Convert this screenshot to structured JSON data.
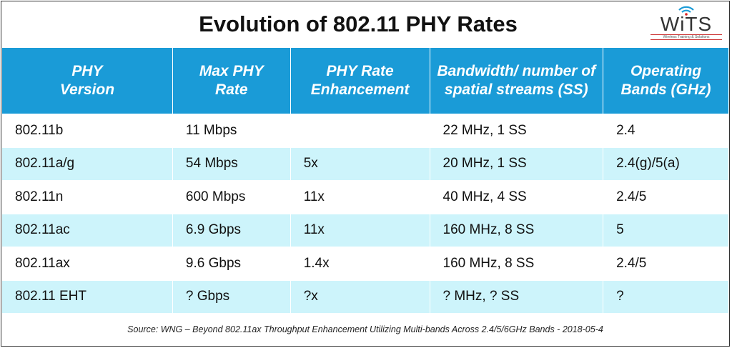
{
  "title": "Evolution of 802.11 PHY Rates",
  "logo": {
    "text": "WiTS",
    "tagline": "Wireless Training & Solutions"
  },
  "headers": [
    "PHY Version",
    "Max PHY Rate",
    "PHY Rate Enhancement",
    "Bandwidth/ number of spatial streams (SS)",
    "Operating Bands (GHz)"
  ],
  "rows": [
    [
      "802.11b",
      "11 Mbps",
      "",
      "22 MHz, 1 SS",
      "2.4"
    ],
    [
      "802.11a/g",
      "54 Mbps",
      "5x",
      "20 MHz, 1 SS",
      "2.4(g)/5(a)"
    ],
    [
      "802.11n",
      "600 Mbps",
      "11x",
      "40 MHz, 4 SS",
      "2.4/5"
    ],
    [
      "802.11ac",
      "6.9 Gbps",
      "11x",
      "160 MHz, 8 SS",
      "5"
    ],
    [
      "802.11ax",
      "9.6 Gbps",
      "1.4x",
      "160 MHz, 8 SS",
      "2.4/5"
    ],
    [
      "802.11 EHT",
      "? Gbps",
      "?x",
      "? MHz, ? SS",
      "?"
    ]
  ],
  "footer": "Source: WNG – Beyond 802.11ax Throughput Enhancement Utilizing Multi-bands Across 2.4/5/6GHz Bands - 2018-05-4",
  "colors": {
    "header": "#1a9bd7",
    "alt_row": "#cdf4fb"
  }
}
